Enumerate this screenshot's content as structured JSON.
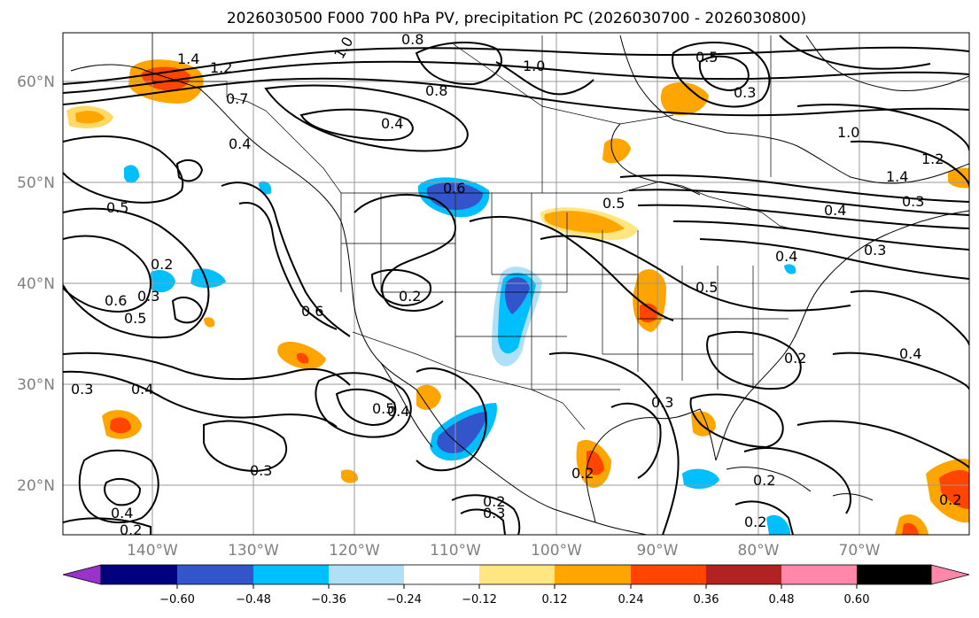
{
  "title": "2026030500 F000 700 hPa PV, precipitation PC (2026030700 - 2026030800)",
  "lat_labels": [
    "60°N",
    "50°N",
    "40°N",
    "30°N",
    "20°N"
  ],
  "lon_labels": [
    "140°W",
    "130°W",
    "120°W",
    "110°W",
    "100°W",
    "90°W",
    "80°W",
    "70°W"
  ],
  "colorbar": {
    "tick_labels": [
      "−0.60",
      "−0.48",
      "−0.36",
      "−0.24",
      "−0.12",
      "0.12",
      "0.24",
      "0.36",
      "0.48",
      "0.60"
    ],
    "colors": [
      "#9933cc",
      "#000080",
      "#3355cc",
      "#00bfff",
      "#b0e0f8",
      "#ffffff",
      "#ffe680",
      "#ffa500",
      "#ff4500",
      "#b22222",
      "#ff88aa"
    ]
  },
  "contour_labels": [
    {
      "text": "1.4"
    },
    {
      "text": "1.2"
    },
    {
      "text": "0.7"
    },
    {
      "text": "0.8"
    },
    {
      "text": "1.0"
    },
    {
      "text": "0.8"
    },
    {
      "text": "0.4"
    },
    {
      "text": "1.0"
    },
    {
      "text": "0.5"
    },
    {
      "text": "0.3"
    },
    {
      "text": "1.0"
    },
    {
      "text": "1.2"
    },
    {
      "text": "0.4"
    },
    {
      "text": "0.5"
    },
    {
      "text": "0.6"
    },
    {
      "text": "0.5"
    },
    {
      "text": "0.4"
    },
    {
      "text": "0.3"
    },
    {
      "text": "1.4"
    },
    {
      "text": "0.3"
    },
    {
      "text": "0.2"
    },
    {
      "text": "0.6"
    },
    {
      "text": "0.5"
    },
    {
      "text": "0.3"
    },
    {
      "text": "0.2"
    },
    {
      "text": "0.6"
    },
    {
      "text": "0.4"
    },
    {
      "text": "0.5"
    },
    {
      "text": "0.2"
    },
    {
      "text": "0.3"
    },
    {
      "text": "0.5"
    },
    {
      "text": "0.4"
    },
    {
      "text": "0.3"
    },
    {
      "text": "0.4"
    },
    {
      "text": "0.4"
    },
    {
      "text": "0.3"
    },
    {
      "text": "0.2"
    },
    {
      "text": "0.2"
    },
    {
      "text": "0.3"
    },
    {
      "text": "0.2"
    },
    {
      "text": "0.2"
    },
    {
      "text": "0.2"
    },
    {
      "text": "0.4"
    },
    {
      "text": "0.2"
    }
  ]
}
